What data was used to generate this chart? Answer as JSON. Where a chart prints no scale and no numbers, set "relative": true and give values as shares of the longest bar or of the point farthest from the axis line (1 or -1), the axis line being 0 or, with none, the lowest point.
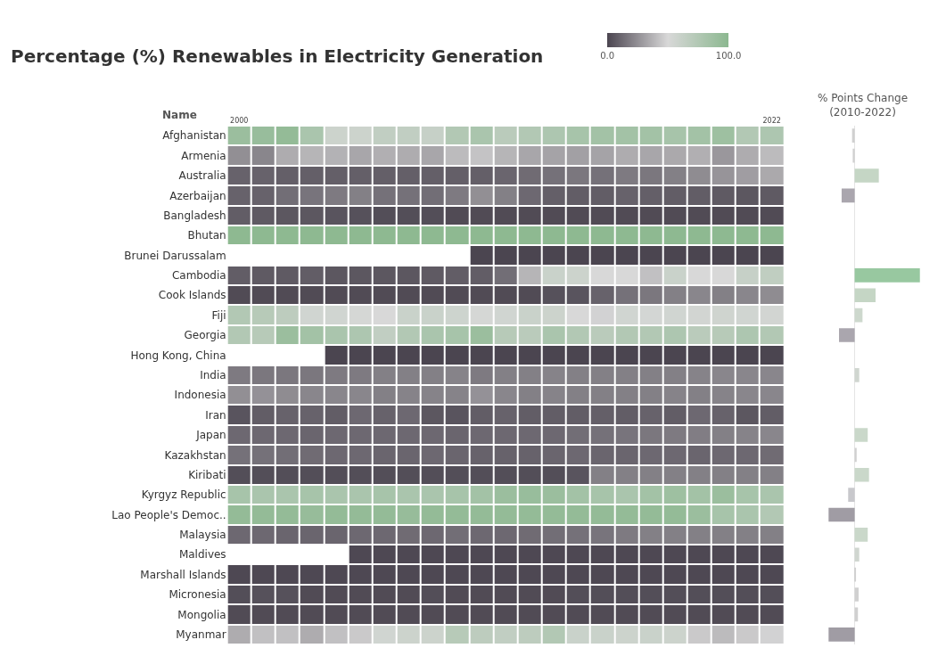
{
  "chart_data": [
    {
      "type": "heatmap",
      "title": "Percentage (%) Renewables in Electricity Generation",
      "ylabel": "Name",
      "categories": [
        "2000",
        null,
        null,
        null,
        null,
        null,
        null,
        null,
        null,
        null,
        null,
        null,
        null,
        null,
        null,
        null,
        null,
        null,
        null,
        null,
        null,
        null,
        "2022"
      ],
      "y_categories": [
        "Afghanistan",
        "Armenia",
        "Australia",
        "Azerbaijan",
        "Bangladesh",
        "Bhutan",
        "Brunei Darussalam",
        "Cambodia",
        "Cook Islands",
        "Fiji",
        "Georgia",
        "Hong Kong, China",
        "India",
        "Indonesia",
        "Iran",
        "Japan",
        "Kazakhstan",
        "Kiribati",
        "Kyrgyz Republic",
        "Lao People's Democ..",
        "Malaysia",
        "Maldives",
        "Marshall Islands",
        "Micronesia",
        "Mongolia",
        "Myanmar"
      ],
      "cells": [
        [
          90,
          92,
          95,
          80,
          58,
          58,
          65,
          65,
          62,
          75,
          80,
          70,
          75,
          78,
          82,
          85,
          85,
          85,
          82,
          85,
          88,
          75,
          78
        ],
        [
          25,
          22,
          35,
          38,
          37,
          33,
          36,
          35,
          33,
          40,
          43,
          38,
          33,
          32,
          31,
          32,
          35,
          33,
          34,
          36,
          28,
          35,
          40
        ],
        [
          10,
          10,
          9,
          9,
          9,
          9,
          9,
          9,
          9,
          9,
          9,
          11,
          13,
          15,
          17,
          15,
          18,
          17,
          20,
          24,
          27,
          30,
          34
        ],
        [
          10,
          10,
          14,
          16,
          18,
          20,
          15,
          15,
          14,
          18,
          25,
          20,
          12,
          9,
          8,
          8,
          10,
          9,
          8,
          8,
          7,
          6,
          7
        ],
        [
          8,
          7,
          6,
          6,
          5,
          4,
          3,
          3,
          3,
          2,
          2,
          2,
          2,
          2,
          2,
          2,
          2,
          2,
          2,
          2,
          2,
          2,
          2
        ],
        [
          99,
          99,
          99,
          99,
          99,
          99,
          99,
          99,
          99,
          99,
          99,
          99,
          99,
          99,
          99,
          99,
          99,
          99,
          99,
          99,
          99,
          99,
          99
        ],
        [
          null,
          null,
          null,
          null,
          null,
          null,
          null,
          null,
          null,
          null,
          0,
          0,
          0,
          0,
          0,
          0,
          0,
          0,
          0,
          0,
          0,
          0,
          0
        ],
        [
          8,
          7,
          7,
          8,
          6,
          6,
          6,
          6,
          7,
          8,
          8,
          14,
          38,
          60,
          58,
          50,
          50,
          42,
          60,
          50,
          50,
          62,
          66
        ],
        [
          2,
          2,
          2,
          2,
          2,
          2,
          2,
          2,
          2,
          2,
          2,
          2,
          2,
          4,
          5,
          10,
          15,
          17,
          20,
          22,
          20,
          22,
          24
        ],
        [
          75,
          72,
          68,
          55,
          55,
          52,
          50,
          60,
          60,
          57,
          52,
          55,
          60,
          58,
          50,
          48,
          55,
          53,
          55,
          54,
          56,
          55,
          54
        ],
        [
          75,
          72,
          90,
          85,
          80,
          78,
          65,
          75,
          80,
          82,
          90,
          72,
          70,
          80,
          75,
          70,
          75,
          75,
          78,
          70,
          72,
          78,
          75
        ],
        [
          null,
          null,
          null,
          null,
          0,
          0,
          0,
          0,
          0,
          0,
          0,
          0,
          0,
          0,
          0,
          0,
          0,
          0,
          0,
          0,
          0,
          0,
          0
        ],
        [
          18,
          17,
          17,
          17,
          18,
          18,
          20,
          20,
          20,
          21,
          18,
          20,
          20,
          21,
          20,
          20,
          20,
          20,
          20,
          21,
          22,
          22,
          22
        ],
        [
          25,
          26,
          24,
          22,
          22,
          22,
          20,
          21,
          21,
          21,
          26,
          22,
          20,
          21,
          20,
          20,
          20,
          20,
          21,
          20,
          21,
          22,
          22
        ],
        [
          5,
          8,
          10,
          10,
          8,
          12,
          10,
          12,
          6,
          5,
          8,
          10,
          8,
          8,
          8,
          9,
          8,
          10,
          8,
          12,
          10,
          6,
          8
        ],
        [
          12,
          12,
          12,
          11,
          12,
          12,
          12,
          12,
          12,
          11,
          12,
          12,
          12,
          12,
          14,
          15,
          16,
          17,
          18,
          19,
          20,
          21,
          22
        ],
        [
          15,
          15,
          14,
          13,
          12,
          12,
          11,
          11,
          12,
          11,
          10,
          10,
          10,
          11,
          12,
          11,
          11,
          12,
          12,
          11,
          12,
          12,
          13
        ],
        [
          3,
          3,
          3,
          3,
          3,
          3,
          3,
          3,
          3,
          3,
          3,
          3,
          3,
          3,
          5,
          20,
          20,
          20,
          20,
          20,
          20,
          20,
          20
        ],
        [
          82,
          80,
          80,
          82,
          80,
          80,
          82,
          80,
          80,
          82,
          85,
          90,
          92,
          90,
          85,
          82,
          80,
          85,
          88,
          85,
          90,
          82,
          80
        ],
        [
          95,
          95,
          95,
          93,
          95,
          95,
          95,
          93,
          95,
          95,
          95,
          95,
          95,
          95,
          95,
          95,
          95,
          95,
          95,
          90,
          82,
          80,
          75
        ],
        [
          12,
          12,
          11,
          11,
          11,
          12,
          12,
          13,
          12,
          14,
          12,
          12,
          13,
          14,
          15,
          16,
          18,
          20,
          20,
          20,
          20,
          20,
          20
        ],
        [
          null,
          null,
          null,
          null,
          null,
          1,
          1,
          1,
          1,
          1,
          1,
          1,
          1,
          1,
          1,
          1,
          1,
          1,
          1,
          1,
          1,
          1,
          1
        ],
        [
          1,
          1,
          1,
          1,
          1,
          1,
          1,
          1,
          1,
          1,
          1,
          1,
          1,
          1,
          1,
          1,
          1,
          1,
          1,
          1,
          1,
          1,
          1
        ],
        [
          3,
          4,
          4,
          2,
          2,
          2,
          2,
          2,
          3,
          2,
          2,
          2,
          2,
          2,
          3,
          3,
          3,
          3,
          3,
          3,
          3,
          3,
          3
        ],
        [
          2,
          2,
          2,
          2,
          2,
          2,
          2,
          2,
          2,
          2,
          2,
          2,
          2,
          2,
          2,
          2,
          2,
          2,
          2,
          2,
          2,
          2,
          2
        ],
        [
          35,
          42,
          42,
          35,
          42,
          45,
          55,
          58,
          58,
          72,
          68,
          65,
          68,
          75,
          60,
          60,
          58,
          60,
          58,
          45,
          40,
          45,
          48
        ]
      ],
      "clim": [
        0,
        100
      ],
      "cticks": [
        {
          "value": 0,
          "label": "0.0"
        },
        {
          "value": 100,
          "label": "100.0"
        }
      ]
    },
    {
      "type": "bar",
      "orientation": "horizontal",
      "relative": true,
      "title": "% Points Change\n(2010-2022)",
      "categories": [
        null,
        null,
        null,
        null,
        null,
        null,
        null,
        null,
        null,
        null,
        null,
        null,
        null,
        null,
        null,
        null,
        null,
        null,
        null,
        null,
        null,
        null,
        null,
        null,
        null,
        null
      ],
      "values": [
        -0.04,
        -0.03,
        0.37,
        -0.2,
        0,
        0,
        0,
        1,
        0.32,
        0.12,
        -0.24,
        0,
        0.07,
        0,
        0,
        0.2,
        0.03,
        0.22,
        -0.1,
        -0.4,
        0.2,
        0.07,
        0.02,
        0.06,
        0.05,
        -0.4
      ],
      "colors": [
        "#d0d0d0",
        "#d0d0d0",
        "#c5d6c5",
        "#aaa6ae",
        "#d0d0d0",
        "#d0d0d0",
        "#d0d0d0",
        "#98c8a0",
        "#c5d6c5",
        "#cdd8cd",
        "#aaa6ae",
        "#d0d0d0",
        "#d0d6d0",
        "#d0d0d0",
        "#d0d0d0",
        "#cad8ca",
        "#d0d0d0",
        "#cad8ca",
        "#c8c8cc",
        "#a09ca4",
        "#cad8ca",
        "#d0d6d0",
        "#d0d0d0",
        "#d0d0d0",
        "#d0d0d0",
        "#a09ca4"
      ]
    }
  ]
}
